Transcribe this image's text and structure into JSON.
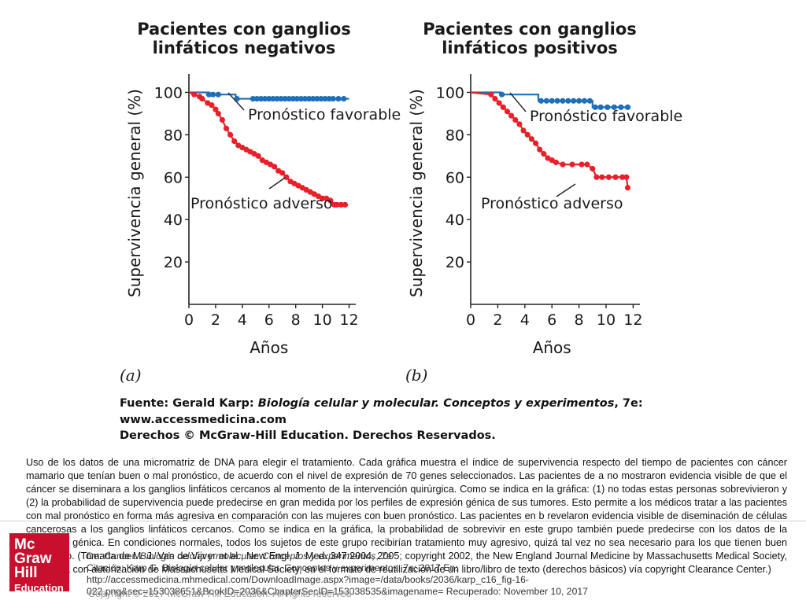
{
  "chart_data": [
    {
      "type": "line",
      "panel_label": "(a)",
      "title": [
        "Pacientes con ganglios",
        "linfáticos negativos"
      ],
      "xlabel": "Años",
      "ylabel": "Supervivencia general (%)",
      "xlim": [
        0,
        12.5
      ],
      "ylim": [
        0,
        105
      ],
      "xticks": [
        0,
        2,
        4,
        6,
        8,
        10,
        12
      ],
      "yticks": [
        20,
        40,
        60,
        80,
        100
      ],
      "series": [
        {
          "name": "Pronóstico favorable",
          "color": "#1f6fb8",
          "x": [
            0,
            1.5,
            1.5,
            3.5,
            3.5,
            12
          ],
          "y": [
            100,
            100,
            99,
            99,
            97,
            97
          ],
          "markers_x": [
            1.5,
            1.8,
            2.2,
            3.6,
            4.8,
            5.1,
            5.4,
            5.7,
            6.0,
            6.3,
            6.6,
            6.9,
            7.2,
            7.5,
            7.8,
            8.1,
            8.4,
            8.7,
            9.0,
            9.3,
            9.6,
            9.9,
            10.2,
            10.5,
            10.8,
            11.2,
            11.6
          ],
          "markers_y": [
            99,
            99,
            99,
            97,
            97,
            97,
            97,
            97,
            97,
            97,
            97,
            97,
            97,
            97,
            97,
            97,
            97,
            97,
            97,
            97,
            97,
            97,
            97,
            97,
            97,
            97,
            97
          ]
        },
        {
          "name": "Pronóstico adverso",
          "color": "#e8202a",
          "x": [
            0,
            0.4,
            0.8,
            1.0,
            1.4,
            1.7,
            2.0,
            2.2,
            2.5,
            2.8,
            3.1,
            3.4,
            3.7,
            4.0,
            4.3,
            4.6,
            4.9,
            5.2,
            5.5,
            5.8,
            6.1,
            6.4,
            6.7,
            7.0,
            7.3,
            7.6,
            7.9,
            8.2,
            8.5,
            8.8,
            9.1,
            9.4,
            9.7,
            10.0,
            10.3,
            10.6,
            10.9,
            11.1,
            11.4,
            11.7
          ],
          "y": [
            100,
            99,
            98,
            97,
            95,
            94,
            92,
            90,
            87,
            83,
            80,
            77,
            75,
            74,
            73,
            72,
            71,
            70,
            68,
            67,
            66,
            65,
            63,
            62,
            60,
            58,
            57,
            56,
            55,
            54,
            53,
            52,
            51,
            50,
            50,
            49,
            47,
            47,
            47,
            47
          ],
          "markers_x": [
            0.4,
            0.8,
            1.0,
            1.4,
            1.7,
            2.0,
            2.2,
            2.5,
            2.8,
            3.1,
            3.4,
            3.7,
            4.0,
            4.3,
            4.6,
            4.9,
            5.2,
            5.5,
            5.8,
            6.1,
            6.4,
            6.7,
            7.0,
            7.3,
            7.6,
            7.9,
            8.2,
            8.5,
            8.8,
            9.1,
            9.4,
            9.7,
            10.0,
            10.3,
            10.6,
            10.9,
            11.1,
            11.4,
            11.7
          ],
          "markers_y": [
            99,
            98,
            97,
            95,
            94,
            92,
            90,
            87,
            83,
            80,
            77,
            75,
            74,
            73,
            72,
            71,
            70,
            68,
            67,
            66,
            65,
            63,
            62,
            60,
            58,
            57,
            56,
            55,
            54,
            53,
            52,
            51,
            50,
            50,
            49,
            47,
            47,
            47,
            47
          ]
        }
      ],
      "annotations": [
        "Pronóstico favorable",
        "Pronóstico adverso"
      ]
    },
    {
      "type": "line",
      "panel_label": "(b)",
      "title": [
        "Pacientes con ganglios",
        "linfáticos positivos"
      ],
      "xlabel": "Años",
      "ylabel": "Supervivencia general (%)",
      "xlim": [
        0,
        12.5
      ],
      "ylim": [
        0,
        105
      ],
      "xticks": [
        0,
        2,
        4,
        6,
        8,
        10,
        12
      ],
      "yticks": [
        20,
        40,
        60,
        80,
        100
      ],
      "series": [
        {
          "name": "Pronóstico favorable",
          "color": "#1f6fb8",
          "x": [
            0,
            2.2,
            2.2,
            5.0,
            5.0,
            9.0,
            9.0,
            11.7
          ],
          "y": [
            100,
            100,
            99,
            99,
            96,
            96,
            93,
            93
          ],
          "markers_x": [
            2.3,
            5.2,
            5.6,
            6.0,
            6.4,
            6.8,
            7.2,
            7.6,
            8.0,
            8.4,
            8.8,
            9.2,
            9.6,
            10.1,
            10.6,
            11.1,
            11.6
          ],
          "markers_y": [
            99,
            96,
            96,
            96,
            96,
            96,
            96,
            96,
            96,
            96,
            96,
            93,
            93,
            93,
            93,
            93,
            93
          ]
        },
        {
          "name": "Pronóstico adverso",
          "color": "#e8202a",
          "x": [
            0,
            1.5,
            1.8,
            2.1,
            2.4,
            2.7,
            3.0,
            3.3,
            3.6,
            3.9,
            4.2,
            4.5,
            4.8,
            5.1,
            5.4,
            5.7,
            6.0,
            6.3,
            6.8,
            7.5,
            8.2,
            8.6,
            9.0,
            9.3,
            9.7,
            10.2,
            10.7,
            11.2,
            11.5,
            11.6
          ],
          "y": [
            100,
            99,
            97,
            95,
            93,
            91,
            89,
            87,
            85,
            82,
            80,
            78,
            76,
            73,
            71,
            69,
            68,
            67,
            66,
            66,
            66,
            66,
            64,
            60,
            60,
            60,
            60,
            60,
            60,
            55
          ],
          "markers_x": [
            1.5,
            1.8,
            2.1,
            2.4,
            2.7,
            3.0,
            3.3,
            3.6,
            3.9,
            4.2,
            4.5,
            4.8,
            5.1,
            5.4,
            5.7,
            6.0,
            6.3,
            6.8,
            7.5,
            8.2,
            8.6,
            9.0,
            9.3,
            9.7,
            10.2,
            10.7,
            11.2,
            11.5,
            11.6
          ],
          "markers_y": [
            99,
            97,
            95,
            93,
            91,
            89,
            87,
            85,
            82,
            80,
            78,
            76,
            73,
            71,
            69,
            68,
            67,
            66,
            66,
            66,
            66,
            64,
            60,
            60,
            60,
            60,
            60,
            60,
            55
          ]
        }
      ],
      "annotations": [
        "Pronóstico favorable",
        "Pronóstico adverso"
      ]
    }
  ],
  "source": {
    "line1_prefix": "Fuente: Gerald Karp: ",
    "line1_italic": "Biología celular y molecular. Conceptos y experimentos",
    "line1_suffix": ", 7e:",
    "line2": "www.accessmedicina.com",
    "line3": "Derechos © McGraw-Hill Education. Derechos Reservados."
  },
  "caption": "Uso de los datos de una micromatriz de DNA para elegir el tratamiento. Cada gráfica muestra el índice de supervivencia respecto del tiempo de pacientes con cáncer mamario que tenían buen o mal pronóstico, de acuerdo con el nivel de expresión de 70 genes seleccionados. Las pacientes de a no mostraron evidencia visible de que el cáncer se diseminara a los ganglios linfáticos cercanos al momento de la intervención quirúrgica. Como se indica en la gráfica: (1) no todas estas personas sobrevivieron y (2) la probabilidad de supervivencia puede predecirse en gran medida por los perfiles de expresión génica de sus tumores. Esto permite a los médicos tratar a las pacientes con mal pronóstico en forma más agresiva en comparación con las mujeres con buen pronóstico. Las pacientes en b revelaron evidencia visible de diseminación de células cancerosas a los ganglios linfáticos cercanos. Como se indica en la gráfica, la probabilidad de sobrevivir en este grupo también puede predecirse con los datos de la expresión génica. En condiciones normales, todos los sujetos de este grupo recibirían tratamiento muy agresivo, quizá tal vez no sea necesario para los que tienen buen pronóstico. (Tomada de M. J. Van de Vijver et al., New Engl. J. Med. 347:2004, 2005; copyright 2002, the New England Journal Medicine by Massachusetts Medical Society, reimpresa con autorización de Massachusetts Medical Society, en el formato de reutilización de un libro/libro de texto (derechos básicos) vía copyright Clearance Center.)",
  "citation": {
    "line1_prefix": "De: Cancer. ",
    "line1_italic": "Biología celular y molecular. Conceptos y experimentos",
    "line1_suffix": ", 7e",
    "line2": "Citación: Karp G. Biología celular y molecular. Conceptos y experimentos, 7e; 2017 En:",
    "line3": "http://accessmedicina.mhmedical.com/DownloadImage.aspx?image=/data/books/2036/karp_c16_fig-16-",
    "line4": "022.png&sec=153038651&BookID=2036&ChapterSecID=153038535&imagename= Recuperado: November 10, 2017"
  },
  "logo": {
    "line1": "Mc",
    "line2": "Graw",
    "line3": "Hill",
    "line4": "Education",
    "color": "#c8102e"
  },
  "copyright": "Copyright © 2017 McGraw-Hill Education. All rights reserved"
}
